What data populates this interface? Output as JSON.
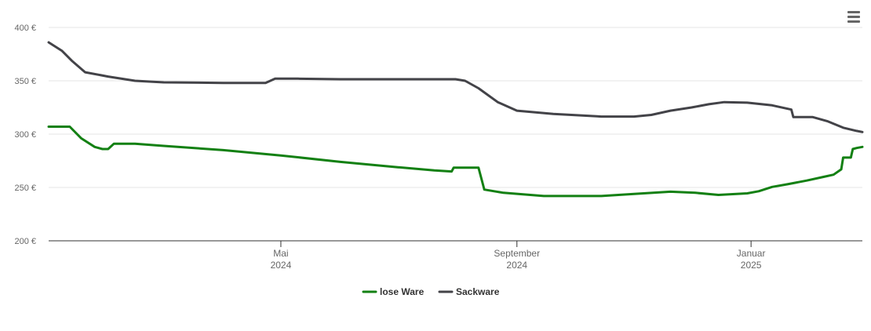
{
  "chart_data": {
    "type": "line",
    "y_ticks": [
      "200 €",
      "250 €",
      "300 €",
      "350 €",
      "400 €"
    ],
    "ylim": [
      200,
      400
    ],
    "xlim": [
      "2024-01-01",
      "2025-02-28"
    ],
    "x_ticks": [
      {
        "date": "2024-05-01",
        "line1": "Mai",
        "line2": "2024"
      },
      {
        "date": "2024-09-01",
        "line1": "September",
        "line2": "2024"
      },
      {
        "date": "2025-01-01",
        "line1": "Januar",
        "line2": "2025"
      }
    ],
    "grid": true,
    "legend": "bottom-center",
    "series": [
      {
        "name": "lose Ware",
        "color": "#138013",
        "points": [
          [
            "2024-01-01",
            307
          ],
          [
            "2024-01-12",
            307
          ],
          [
            "2024-01-18",
            296
          ],
          [
            "2024-01-25",
            288
          ],
          [
            "2024-01-29",
            286
          ],
          [
            "2024-02-01",
            286
          ],
          [
            "2024-02-04",
            291
          ],
          [
            "2024-02-15",
            291
          ],
          [
            "2024-03-01",
            289
          ],
          [
            "2024-04-01",
            285
          ],
          [
            "2024-05-01",
            280
          ],
          [
            "2024-06-01",
            274
          ],
          [
            "2024-07-01",
            269
          ],
          [
            "2024-07-20",
            266
          ],
          [
            "2024-07-29",
            265
          ],
          [
            "2024-07-30",
            268.5
          ],
          [
            "2024-08-12",
            268.5
          ],
          [
            "2024-08-15",
            248
          ],
          [
            "2024-08-25",
            245
          ],
          [
            "2024-09-15",
            242
          ],
          [
            "2024-10-15",
            242
          ],
          [
            "2024-11-01",
            244
          ],
          [
            "2024-11-20",
            246
          ],
          [
            "2024-12-03",
            245
          ],
          [
            "2024-12-15",
            243
          ],
          [
            "2024-12-30",
            244.5
          ],
          [
            "2025-01-05",
            246.5
          ],
          [
            "2025-01-12",
            250.5
          ],
          [
            "2025-01-20",
            253
          ],
          [
            "2025-01-30",
            256.5
          ],
          [
            "2025-02-08",
            260
          ],
          [
            "2025-02-13",
            262
          ],
          [
            "2025-02-17",
            267
          ],
          [
            "2025-02-18",
            278
          ],
          [
            "2025-02-22",
            278
          ],
          [
            "2025-02-23",
            286
          ],
          [
            "2025-02-25",
            287
          ],
          [
            "2025-02-28",
            288
          ]
        ]
      },
      {
        "name": "Sackware",
        "color": "#434348",
        "points": [
          [
            "2024-01-01",
            386
          ],
          [
            "2024-01-08",
            378
          ],
          [
            "2024-01-13",
            369
          ],
          [
            "2024-01-20",
            358
          ],
          [
            "2024-02-01",
            354
          ],
          [
            "2024-02-15",
            350
          ],
          [
            "2024-03-01",
            348.5
          ],
          [
            "2024-04-01",
            348
          ],
          [
            "2024-04-23",
            348
          ],
          [
            "2024-04-28",
            352
          ],
          [
            "2024-05-10",
            352
          ],
          [
            "2024-06-01",
            351.5
          ],
          [
            "2024-07-01",
            351.5
          ],
          [
            "2024-07-31",
            351.5
          ],
          [
            "2024-08-05",
            350
          ],
          [
            "2024-08-12",
            343
          ],
          [
            "2024-08-22",
            330
          ],
          [
            "2024-09-01",
            322
          ],
          [
            "2024-09-20",
            319
          ],
          [
            "2024-10-15",
            316.5
          ],
          [
            "2024-11-01",
            316.5
          ],
          [
            "2024-11-10",
            318
          ],
          [
            "2024-11-20",
            322
          ],
          [
            "2024-12-01",
            325
          ],
          [
            "2024-12-10",
            328
          ],
          [
            "2024-12-18",
            330
          ],
          [
            "2024-12-30",
            329.5
          ],
          [
            "2025-01-12",
            327
          ],
          [
            "2025-01-22",
            323
          ],
          [
            "2025-01-23",
            316
          ],
          [
            "2025-02-02",
            316
          ],
          [
            "2025-02-10",
            312
          ],
          [
            "2025-02-18",
            306
          ],
          [
            "2025-02-25",
            303
          ],
          [
            "2025-02-28",
            302
          ]
        ]
      }
    ]
  },
  "legend_items": [
    "lose Ware",
    "Sackware"
  ]
}
